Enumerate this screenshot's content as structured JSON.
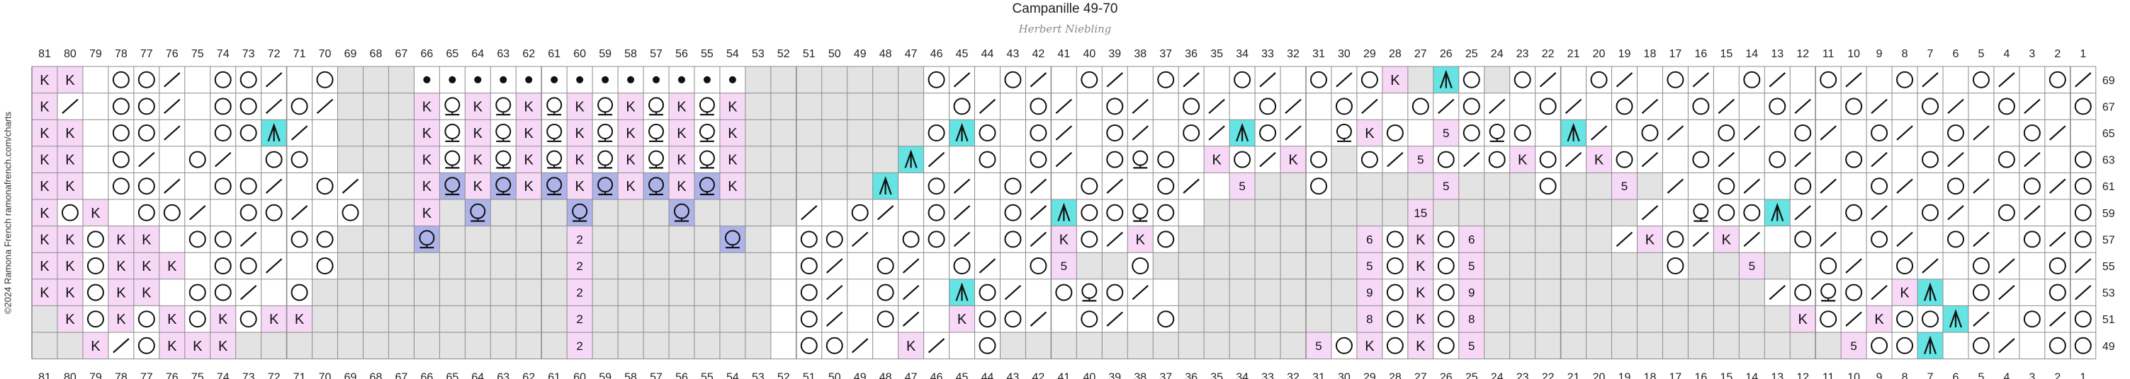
{
  "title": "Campanille 49-70",
  "author": "Herbert Niebling",
  "copyright": "©2024 Ramona French  ramonafrench.com/charts",
  "chart_data": {
    "type": "knitting-chart",
    "columns": [
      81,
      80,
      79,
      78,
      77,
      76,
      75,
      74,
      73,
      72,
      71,
      70,
      69,
      68,
      67,
      66,
      65,
      64,
      63,
      62,
      61,
      60,
      59,
      58,
      57,
      56,
      55,
      54,
      53,
      52,
      51,
      50,
      49,
      48,
      47,
      46,
      45,
      44,
      43,
      42,
      41,
      40,
      39,
      38,
      37,
      36,
      35,
      34,
      33,
      32,
      31,
      30,
      29,
      28,
      27,
      26,
      25,
      24,
      23,
      22,
      21,
      20,
      19,
      18,
      17,
      16,
      15,
      14,
      13,
      12,
      11,
      10,
      9,
      8,
      7,
      6,
      5,
      4,
      3,
      2,
      1
    ],
    "rows": [
      69,
      67,
      65,
      63,
      61,
      59,
      57,
      55,
      53,
      51,
      49
    ],
    "legend": {
      "k": "knit",
      "o": "yarn over",
      "/": "k2tog",
      "\\": "ssk",
      "b": "bobble",
      "A": "central double decrease",
      "q": "twisted knit",
      "Q": "twisted stitch (blue)",
      "x": "no stitch",
      "n": "number / repeat count"
    },
    "colors": {
      "knit": "#f7d9f7",
      "nostitch": "#e3e3e3",
      "decrease": "#66e3e3",
      "twisted": "#aeb4ea",
      "grid": "#8c8c8c"
    },
    "cells": {
      "69": "k,k,-,o,o,/,-,o,o,/,-,o,x,x,x,b,b,b,b,b,b,b,b,b,b,b,b,b,x,x,x,x,x,x,x,o,/,-,o,/,-,o,/,-,o,/,-,o,/,-,o,/,o,k,x,A,o,x,o,/,-,o,/,-,o,/,-,o,/,-,o,/,-,o,/,-,o,/,-,o,/,o",
      "67": "k,/,-,o,o,/,-,o,o,/,o,/,x,x,x,k,q,k,q,k,q,k,q,k,q,k,q,k,x,x,x,x,x,x,x,-,o,/,-,o,/,-,o,/,-,o,/,-,o,/,-,o,/,-,o,/,o,/,-,o,/,-,o,/,-,o,/,-,o,/,-,o,/,-,o,/,-,o,/,-,o,/,o",
      "65": "k,k,-,o,o,/,-,o,o,A,/,-,x,x,x,k,q,k,q,k,q,k,q,k,q,k,q,k,x,x,x,x,x,x,x,o,A,o,-,o,/,-,o,/,-,o,/,A,o,/,-,q,k,o,-,n5,o,q,o,-,A,/,-,o,/,-,o,/,-,o,/,-,o,/,-,o,/,-,o,/,-,o,/,o",
      "63": "k,k,-,o,/,-,o,/,-,o,o,-,x,x,x,k,q,k,q,k,q,k,q,k,q,k,q,k,x,x,x,x,x,x,A,/,-,o,-,o,/,-,o,q,o,-,k,o,/,k,o,x,o,/,n5,o,/,o,k,o,/,k,o,/,-,o,/,-,o,/,-,o,/,-,o,/,-,o,/,-,o,/,o",
      "61": "k,k,-,o,o,/,-,o,o,/,-,o,/,x,x,k,Q,k,Q,k,Q,k,Q,k,Q,k,Q,k,x,x,x,x,x,A,-,o,/,-,o,/,-,o,/,-,o,/,-,n5,x,x,o,x,x,x,x,n5,x,x,x,o,x,x,n5,x,/,-,o,/,-,o,/,-,o,/,-,o,/,-,o,/,o",
      "59": "k,o,k,-,o,o,/,-,o,o,/,-,o,x,x,k,x,Q,x,x,x,Q,x,x,x,Q,x,x,x,x,/,-,o,/,-,o,/,-,o,/,A,o,o,q,o,-,x,x,x,x,x,x,x,x,n15,x,x,x,x,x,x,x,x,/,-,q,o,o,A,/,-,o,/,-,o,/,-,o,/,-,o,/,o",
      "57": "k,k,o,k,k,-,o,o,/,-,o,o,x,x,x,Q,x,x,x,x,x,n2,x,x,x,x,x,Q,x,-,o,o,/,-,o,o,/,-,o,/,k,o,/,k,o,x,x,x,x,x,x,x,n6,o,k,o,n6,x,x,x,x,x,/,k,o,/,k,/,-,o,/,-,o,/,-,o,/,-,o,/,o",
      "55": "k,k,o,k,k,k,-,o,o,/,-,o,x,x,x,x,x,x,x,x,x,n2,x,x,x,x,x,x,x,-,o,/,-,o,/,-,o,/,-,o,n5,x,x,o,x,x,x,x,x,x,x,x,n5,o,k,o,n5,x,x,x,x,x,x,x,o,x,x,n5,x,-,o,/,-,o,/,-,o,/,-,o,/,o",
      "53": "k,k,o,k,k,-,o,o,/,-,o,x,x,x,x,x,x,x,x,x,x,n2,x,x,x,x,x,x,x,-,o,/,-,o,/,-,A,o,/,-,o,q,o,/,-,x,x,x,x,x,x,x,n9,o,k,o,n9,x,x,x,x,x,x,x,x,x,x,x,/,o,q,o,/,k,A,-,o,/,-,o,/,o",
      "51": "x,k,o,k,o,k,o,k,o,k,k,x,x,x,x,x,x,x,x,x,x,n2,x,x,x,x,x,x,x,-,o,/,-,o,/,-,k,o,o,/,-,o,/,-,o,x,x,x,x,x,x,x,n8,o,k,o,n8,x,x,x,x,x,x,x,x,x,x,x,x,k,o,/,k,o,o,A,/,-,o,/,o",
      "49": "x,x,k,/,o,k,k,k,x,x,x,x,x,x,x,x,x,x,x,x,x,n2,x,x,x,x,x,x,x,-,o,o,/,-,k,/,-,o,x,x,x,x,x,x,x,x,x,x,x,x,n5,o,k,o,k,o,n5,x,x,x,x,x,x,x,x,x,x,x,x,x,x,n5,o,o,A,-,o,/,-,o,o"
    }
  }
}
